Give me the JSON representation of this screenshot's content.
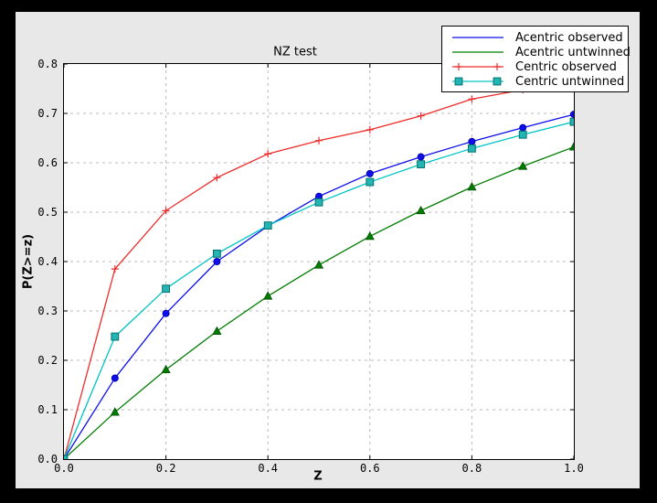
{
  "window": {
    "background": "#000000",
    "figure_background": "#e8e8e8",
    "plot_background": "#ffffff",
    "grid_color": "#b8b8b8",
    "frame_color": "#000000"
  },
  "chart_data": {
    "type": "line",
    "title": "NZ test",
    "xlabel": "Z",
    "ylabel": "P(Z>=z)",
    "xlim": [
      0.0,
      1.0
    ],
    "ylim": [
      0.0,
      0.8
    ],
    "grid": true,
    "legend_position": "top-right",
    "xticks": [
      0.0,
      0.2,
      0.4,
      0.6,
      0.8,
      1.0
    ],
    "xtick_labels": [
      "0.0",
      "0.2",
      "0.4",
      "0.6",
      "0.8",
      "1.0"
    ],
    "yticks": [
      0.0,
      0.1,
      0.2,
      0.3,
      0.4,
      0.5,
      0.6,
      0.7,
      0.8
    ],
    "ytick_labels": [
      "0.0",
      "0.1",
      "0.2",
      "0.3",
      "0.4",
      "0.5",
      "0.6",
      "0.7",
      "0.8"
    ],
    "x": [
      0.0,
      0.1,
      0.2,
      0.3,
      0.4,
      0.5,
      0.6,
      0.7,
      0.8,
      0.9,
      1.0
    ],
    "series": [
      {
        "name": "Acentric observed",
        "color": "#0e0eec",
        "marker": "circle",
        "marker_fill": "#0e0eec",
        "marker_edge": "#0000a0",
        "legend_marker": "none",
        "values": [
          0.0,
          0.164,
          0.295,
          0.4,
          0.472,
          0.532,
          0.578,
          0.612,
          0.643,
          0.671,
          0.698
        ]
      },
      {
        "name": "Acentric untwinned",
        "color": "#007d00",
        "marker": "triangle",
        "marker_fill": "#007d00",
        "marker_edge": "#004d00",
        "legend_marker": "none",
        "values": [
          0.0,
          0.095,
          0.181,
          0.259,
          0.33,
          0.393,
          0.451,
          0.503,
          0.551,
          0.593,
          0.632
        ]
      },
      {
        "name": "Centric observed",
        "color": "#ee2c2c",
        "marker": "plus",
        "marker_fill": "#ee2c2c",
        "marker_edge": "#ee2c2c",
        "legend_marker": "plus",
        "values": [
          0.0,
          0.385,
          0.503,
          0.57,
          0.618,
          0.645,
          0.667,
          0.695,
          0.729,
          0.748,
          0.768
        ]
      },
      {
        "name": "Centric untwinned",
        "color": "#00c3c3",
        "marker": "square",
        "marker_fill": "#25b4b4",
        "marker_edge": "#00716e",
        "legend_marker": "square",
        "values": [
          0.0,
          0.248,
          0.345,
          0.416,
          0.473,
          0.52,
          0.561,
          0.597,
          0.629,
          0.657,
          0.683
        ]
      }
    ]
  }
}
